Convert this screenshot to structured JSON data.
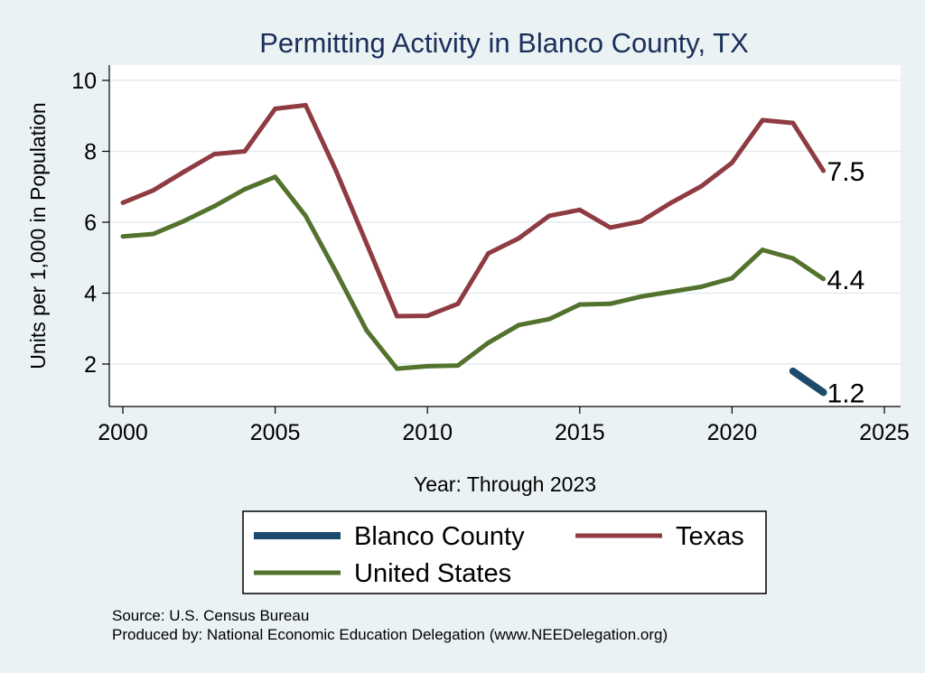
{
  "chart_data": {
    "type": "line",
    "title": "Permitting Activity in Blanco County, TX",
    "xlabel": "Year: Through 2023",
    "ylabel": "Units per 1,000 in Population",
    "xlim": [
      2000,
      2025
    ],
    "ylim": [
      0.8,
      10.4
    ],
    "xticks": [
      2000,
      2005,
      2010,
      2015,
      2020,
      2025
    ],
    "yticks": [
      2,
      4,
      6,
      8,
      10
    ],
    "grid": true,
    "legend_position": "bottom",
    "series": [
      {
        "name": "Blanco County",
        "color": "#1b4a6b",
        "x": [
          2022,
          2023
        ],
        "values": [
          1.8,
          1.2
        ],
        "end_label": "1.2"
      },
      {
        "name": "Texas",
        "color": "#8e3b42",
        "x": [
          2000,
          2001,
          2002,
          2003,
          2004,
          2005,
          2006,
          2007,
          2008,
          2009,
          2010,
          2011,
          2012,
          2013,
          2014,
          2015,
          2016,
          2017,
          2018,
          2019,
          2020,
          2021,
          2022,
          2023
        ],
        "values": [
          6.55,
          6.9,
          7.42,
          7.92,
          8.0,
          9.2,
          9.3,
          7.45,
          5.4,
          3.35,
          3.36,
          3.7,
          5.12,
          5.55,
          6.18,
          6.35,
          5.85,
          6.02,
          6.55,
          7.02,
          7.68,
          8.88,
          8.8,
          7.45
        ],
        "end_label": "7.5"
      },
      {
        "name": "United States",
        "color": "#53722d",
        "x": [
          2000,
          2001,
          2002,
          2003,
          2004,
          2005,
          2006,
          2007,
          2008,
          2009,
          2010,
          2011,
          2012,
          2013,
          2014,
          2015,
          2016,
          2017,
          2018,
          2019,
          2020,
          2021,
          2022,
          2023
        ],
        "values": [
          5.6,
          5.67,
          6.03,
          6.45,
          6.93,
          7.28,
          6.18,
          4.6,
          2.95,
          1.87,
          1.94,
          1.96,
          2.6,
          3.1,
          3.27,
          3.68,
          3.7,
          3.9,
          4.04,
          4.18,
          4.42,
          5.22,
          4.98,
          4.4
        ],
        "end_label": "4.4"
      }
    ]
  },
  "legend": {
    "items": [
      {
        "label": "Blanco County",
        "series": 0
      },
      {
        "label": "Texas",
        "series": 1
      },
      {
        "label": "United States",
        "series": 2
      }
    ]
  },
  "footer": {
    "source": "Source: U.S. Census Bureau",
    "produced_by": "Produced by: National Economic Education Delegation (www.NEEDelegation.org)"
  }
}
